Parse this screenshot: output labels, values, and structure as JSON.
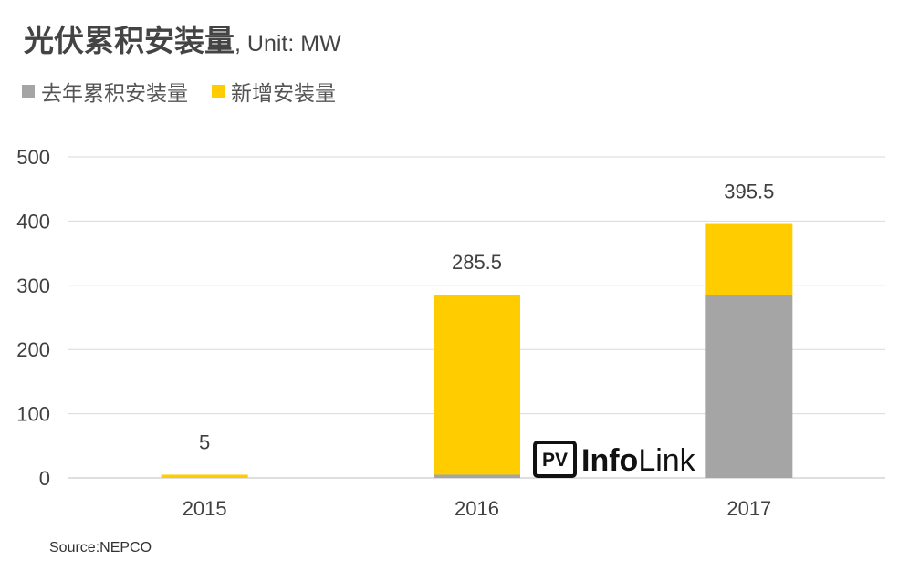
{
  "title": "光伏累积安装量",
  "title_unit": ", Unit: MW",
  "legend": [
    {
      "label": "去年累积安装量",
      "color": "#a5a5a5"
    },
    {
      "label": "新增安装量",
      "color": "#ffcc00"
    }
  ],
  "source": "Source:NEPCO",
  "watermark": {
    "badge": "PV",
    "text_bold": "Info",
    "text_regular": "Link"
  },
  "chart_data": {
    "type": "bar",
    "stacked": true,
    "title": "光伏累积安装量",
    "categories": [
      "2015",
      "2016",
      "2017"
    ],
    "series": [
      {
        "name": "去年累积安装量",
        "color": "#a5a5a5",
        "values": [
          0,
          5,
          285.5
        ]
      },
      {
        "name": "新增安装量",
        "color": "#ffcc00",
        "values": [
          5,
          280.5,
          110
        ]
      }
    ],
    "totals": [
      "5",
      "285.5",
      "395.5"
    ],
    "ylim": [
      0,
      500
    ],
    "yticks": [
      0,
      100,
      200,
      300,
      400,
      500
    ],
    "grid": true,
    "legend_position": "top-left",
    "xlabel": "",
    "ylabel": ""
  }
}
